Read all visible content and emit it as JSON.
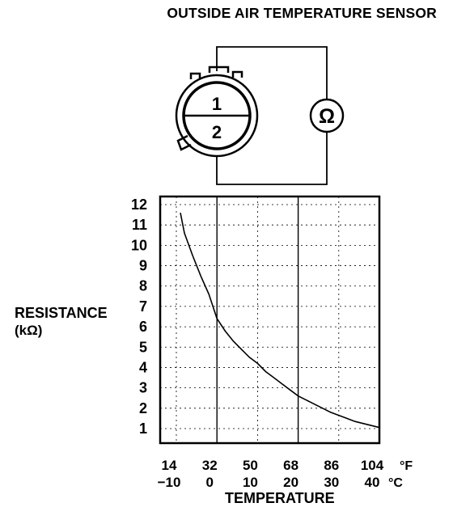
{
  "diagram": {
    "title": "OUTSIDE AIR TEMPERATURE SENSOR",
    "terminal_labels": [
      "1",
      "2"
    ],
    "meter_symbol": "Ω"
  },
  "chart_data": {
    "type": "line",
    "title": "",
    "ylabel": "RESISTANCE",
    "ylabel_unit": "(kΩ)",
    "xlabel": "TEMPERATURE",
    "x_unit_primary": "°F",
    "x_unit_secondary": "°C",
    "x_ticks_f": [
      "14",
      "32",
      "50",
      "68",
      "86",
      "104"
    ],
    "x_ticks_c": [
      "−10",
      "0",
      "10",
      "20",
      "30",
      "40"
    ],
    "y_ticks": [
      "1",
      "2",
      "3",
      "4",
      "5",
      "6",
      "7",
      "8",
      "9",
      "10",
      "11",
      "12"
    ],
    "xlim": [
      -10,
      40
    ],
    "ylim": [
      0.5,
      12
    ],
    "grid": true,
    "series": [
      {
        "x": [
          -9,
          -8,
          -6,
          -4,
          -2,
          0,
          2,
          4,
          6,
          8,
          10,
          12,
          14,
          16,
          18,
          20,
          22,
          24,
          26,
          28,
          30,
          32,
          34,
          36,
          38,
          40
        ],
        "y": [
          11.6,
          10.6,
          9.5,
          8.5,
          7.6,
          6.4,
          5.8,
          5.3,
          4.9,
          4.5,
          4.2,
          3.8,
          3.5,
          3.2,
          2.9,
          2.6,
          2.4,
          2.2,
          2.0,
          1.8,
          1.65,
          1.5,
          1.35,
          1.25,
          1.15,
          1.05
        ]
      }
    ]
  }
}
